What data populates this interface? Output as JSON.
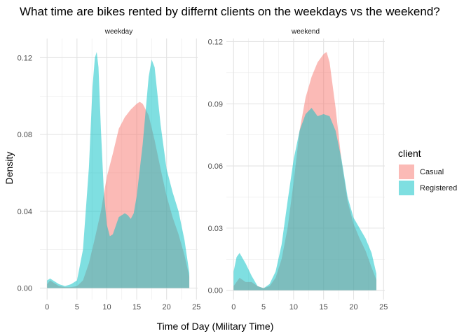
{
  "chart_data": {
    "type": "area",
    "title": "What time are bikes rented by differnt clients on the weekdays vs the weekend?",
    "xlabel": "Time of Day (Military Time)",
    "ylabel": "Density",
    "legend": {
      "title": "client",
      "position": "right",
      "entries": [
        {
          "name": "Casual",
          "color": "#f8766d"
        },
        {
          "name": "Registered",
          "color": "#00bfc4"
        }
      ]
    },
    "grid": true,
    "fill_opacity": 0.5,
    "panels": [
      {
        "name": "weekday",
        "xlim": [
          -1.2,
          25.2
        ],
        "ylim": [
          -0.006,
          0.13
        ],
        "x_ticks": [
          0,
          5,
          10,
          15,
          20,
          25
        ],
        "y_ticks": [
          0.0,
          0.04,
          0.08,
          0.12
        ],
        "y_tick_labels": [
          "0.00",
          "0.04",
          "0.08",
          "0.12"
        ],
        "series": [
          {
            "name": "Casual",
            "points": [
              [
                0,
                0.002
              ],
              [
                0.5,
                0.004
              ],
              [
                1,
                0.003
              ],
              [
                2,
                0.001
              ],
              [
                3,
                0.0005
              ],
              [
                4,
                0.0005
              ],
              [
                5,
                0.001
              ],
              [
                6,
                0.004
              ],
              [
                7,
                0.013
              ],
              [
                8,
                0.026
              ],
              [
                9,
                0.04
              ],
              [
                10,
                0.058
              ],
              [
                11,
                0.07
              ],
              [
                12,
                0.083
              ],
              [
                13,
                0.089
              ],
              [
                14,
                0.093
              ],
              [
                15,
                0.096
              ],
              [
                15.5,
                0.097
              ],
              [
                16,
                0.096
              ],
              [
                17,
                0.09
              ],
              [
                18,
                0.077
              ],
              [
                19,
                0.062
              ],
              [
                20,
                0.048
              ],
              [
                21,
                0.037
              ],
              [
                22,
                0.028
              ],
              [
                23,
                0.017
              ],
              [
                23.8,
                0.006
              ]
            ]
          },
          {
            "name": "Registered",
            "points": [
              [
                0,
                0.004
              ],
              [
                0.5,
                0.005
              ],
              [
                1,
                0.004
              ],
              [
                2,
                0.002
              ],
              [
                3,
                0.001
              ],
              [
                4,
                0.002
              ],
              [
                5,
                0.004
              ],
              [
                6,
                0.02
              ],
              [
                7,
                0.063
              ],
              [
                7.6,
                0.105
              ],
              [
                8,
                0.12
              ],
              [
                8.3,
                0.123
              ],
              [
                8.6,
                0.115
              ],
              [
                9,
                0.083
              ],
              [
                9.5,
                0.05
              ],
              [
                10,
                0.033
              ],
              [
                10.5,
                0.027
              ],
              [
                11,
                0.028
              ],
              [
                12,
                0.037
              ],
              [
                13,
                0.039
              ],
              [
                13.5,
                0.038
              ],
              [
                14,
                0.036
              ],
              [
                14.5,
                0.039
              ],
              [
                15,
                0.048
              ],
              [
                16,
                0.075
              ],
              [
                17,
                0.11
              ],
              [
                17.5,
                0.119
              ],
              [
                18,
                0.115
              ],
              [
                19,
                0.085
              ],
              [
                20,
                0.062
              ],
              [
                21,
                0.05
              ],
              [
                22,
                0.04
              ],
              [
                23,
                0.025
              ],
              [
                23.8,
                0.008
              ]
            ]
          }
        ]
      },
      {
        "name": "weekend",
        "xlim": [
          -1.2,
          25.2
        ],
        "ylim": [
          -0.0045,
          0.1215
        ],
        "x_ticks": [
          0,
          5,
          10,
          15,
          20,
          25
        ],
        "y_ticks": [
          0.0,
          0.03,
          0.06,
          0.09,
          0.12
        ],
        "y_tick_labels": [
          "0.00",
          "0.03",
          "0.06",
          "0.09",
          "0.12"
        ],
        "series": [
          {
            "name": "Casual",
            "points": [
              [
                0,
                0.002
              ],
              [
                1,
                0.006
              ],
              [
                2,
                0.004
              ],
              [
                3,
                0.004
              ],
              [
                4,
                0.002
              ],
              [
                5,
                0.001
              ],
              [
                6,
                0.002
              ],
              [
                7,
                0.006
              ],
              [
                8,
                0.015
              ],
              [
                9,
                0.03
              ],
              [
                10,
                0.052
              ],
              [
                11,
                0.077
              ],
              [
                12,
                0.093
              ],
              [
                13,
                0.103
              ],
              [
                14,
                0.11
              ],
              [
                15,
                0.114
              ],
              [
                15.5,
                0.115
              ],
              [
                16,
                0.11
              ],
              [
                17,
                0.088
              ],
              [
                18,
                0.062
              ],
              [
                19,
                0.043
              ],
              [
                20,
                0.032
              ],
              [
                21,
                0.025
              ],
              [
                22,
                0.019
              ],
              [
                23,
                0.011
              ],
              [
                23.8,
                0.005
              ]
            ]
          },
          {
            "name": "Registered",
            "points": [
              [
                0,
                0.009
              ],
              [
                0.5,
                0.016
              ],
              [
                1,
                0.018
              ],
              [
                2,
                0.013
              ],
              [
                3,
                0.007
              ],
              [
                4,
                0.002
              ],
              [
                5,
                0.001
              ],
              [
                6,
                0.003
              ],
              [
                7,
                0.009
              ],
              [
                8,
                0.022
              ],
              [
                9,
                0.043
              ],
              [
                10,
                0.063
              ],
              [
                11,
                0.077
              ],
              [
                12,
                0.085
              ],
              [
                13,
                0.088
              ],
              [
                14,
                0.084
              ],
              [
                15,
                0.085
              ],
              [
                16,
                0.084
              ],
              [
                17,
                0.077
              ],
              [
                18,
                0.063
              ],
              [
                19,
                0.045
              ],
              [
                20,
                0.035
              ],
              [
                21,
                0.03
              ],
              [
                22,
                0.025
              ],
              [
                23,
                0.018
              ],
              [
                23.8,
                0.008
              ]
            ]
          }
        ]
      }
    ]
  }
}
